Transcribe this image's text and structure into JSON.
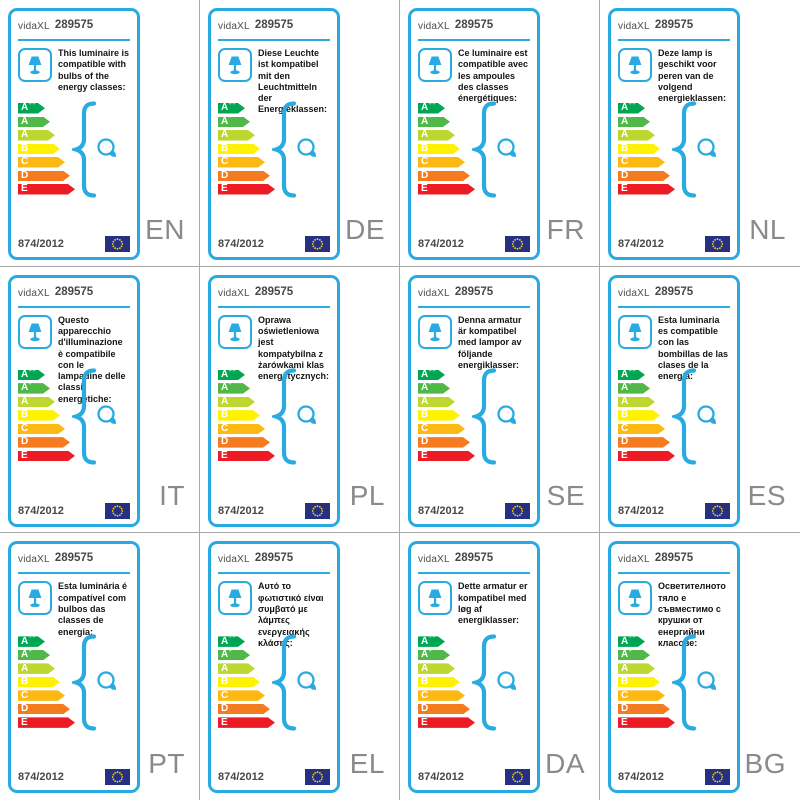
{
  "shared": {
    "brand": "vidaXL",
    "model": "289575",
    "regulation": "874/2012",
    "energy_classes": [
      {
        "label": "A",
        "sup": "++",
        "color": "#00a651"
      },
      {
        "label": "A",
        "sup": "+",
        "color": "#50b848"
      },
      {
        "label": "A",
        "sup": "",
        "color": "#bed630"
      },
      {
        "label": "B",
        "sup": "",
        "color": "#fff200"
      },
      {
        "label": "C",
        "sup": "",
        "color": "#fdb913"
      },
      {
        "label": "D",
        "sup": "",
        "color": "#f47b20"
      },
      {
        "label": "E",
        "sup": "",
        "color": "#ed1c24"
      }
    ],
    "colors": {
      "accent_blue": "#29abe2",
      "flag_navy": "#253083",
      "flag_star_yellow": "#ffd500",
      "lang_label_gray": "#8a8a8a",
      "grid_line_gray": "#a9a9a9"
    },
    "icons": [
      "table-lamp-icon",
      "curly-brace-icon",
      "light-bulb-icon",
      "eu-flag-icon"
    ]
  },
  "cards": [
    {
      "lang": "EN",
      "description": "This luminaire is compatible with bulbs of the energy classes:"
    },
    {
      "lang": "DE",
      "description": "Diese Leuchte ist kompatibel mit den Leuchtmitteln der Energieklassen:"
    },
    {
      "lang": "FR",
      "description": "Ce luminaire est compatible avec les ampoules des classes énergétiques:"
    },
    {
      "lang": "NL",
      "description": "Deze lamp is geschikt voor peren van de volgend energieklassen:"
    },
    {
      "lang": "IT",
      "description": "Questo apparecchio d'illuminazione è compatibile con le lampadine delle classi energetiche:"
    },
    {
      "lang": "PL",
      "description": "Oprawa oświetleniowa jest kompatybilna z żarówkami klas energetycznych:"
    },
    {
      "lang": "SE",
      "description": "Denna armatur är kompatibel med lampor av följande energiklasser:"
    },
    {
      "lang": "ES",
      "description": "Esta luminaria es compatible con las bombillas de las clases de la energía:"
    },
    {
      "lang": "PT",
      "description": "Esta luminária é compatível com bulbos das classes de energia:"
    },
    {
      "lang": "EL",
      "description": "Αυτό το φωτιστικό είναι συμβατό με λάμπες ενεργειακής κλάσης:"
    },
    {
      "lang": "DA",
      "description": "Dette armatur er kompatibel med løg af energiklasser:"
    },
    {
      "lang": "BG",
      "description": "Осветителното тяло е съвместимо с крушки от енергийни класове:"
    }
  ]
}
